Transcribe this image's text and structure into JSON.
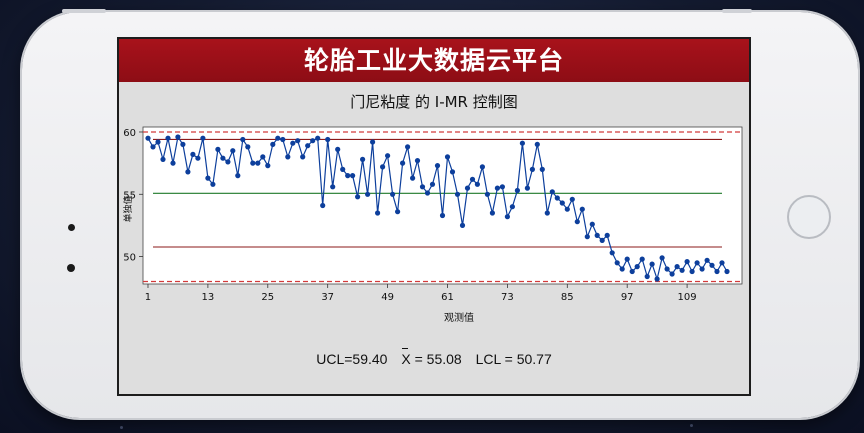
{
  "app": {
    "banner_title": "轮胎工业大数据云平台"
  },
  "device": {
    "model_icon": "smartphone-icon",
    "home_button_icon": "home-button-icon"
  },
  "stats": {
    "ucl": "UCL=59.40",
    "mean_symbol": "X",
    "mean": " = 55.08",
    "lcl": "LCL = 50.77"
  },
  "chart_data": {
    "type": "line",
    "title": "门尼粘度 的 I-MR 控制图",
    "xlabel": "观测值",
    "ylabel": "单独值",
    "xlim": [
      0,
      120
    ],
    "ylim": [
      47.8,
      60.4
    ],
    "x_ticks": [
      1,
      13,
      25,
      37,
      49,
      61,
      73,
      85,
      97,
      109
    ],
    "y_ticks": [
      50,
      55,
      60
    ],
    "colors": {
      "series": "#0d3f9c",
      "ucl": "#8b1a1a",
      "lcl": "#8b1a1a",
      "center": "#1f7a2a",
      "spec": "#d23a3a"
    },
    "reference_lines": [
      {
        "name": "UCL",
        "value": 59.4,
        "style": "solid"
      },
      {
        "name": "center",
        "value": 55.08,
        "style": "solid"
      },
      {
        "name": "LCL",
        "value": 50.77,
        "style": "solid"
      },
      {
        "name": "upper-spec",
        "value": 60.0,
        "style": "dashed"
      },
      {
        "name": "lower-spec",
        "value": 48.0,
        "style": "dashed"
      }
    ],
    "series": [
      {
        "values": [
          59.5,
          58.8,
          59.2,
          57.8,
          59.5,
          57.5,
          59.6,
          59.0,
          56.8,
          58.2,
          57.9,
          59.5,
          56.3,
          55.8,
          58.6,
          57.9,
          57.6,
          58.5,
          56.5,
          59.4,
          58.8,
          57.5,
          57.5,
          58.0,
          57.3,
          59.0,
          59.5,
          59.4,
          58.0,
          59.1,
          59.3,
          58.0,
          58.9,
          59.3,
          59.5,
          54.1,
          59.4,
          55.6,
          58.6,
          57.0,
          56.5,
          56.5,
          54.8,
          57.8,
          55.0,
          59.2,
          53.5,
          57.2,
          58.1,
          55.0,
          53.6,
          57.5,
          58.8,
          56.3,
          57.7,
          55.6,
          55.1,
          55.8,
          57.3,
          53.3,
          58.0,
          56.8,
          55.0,
          52.5,
          55.5,
          56.2,
          55.8,
          57.2,
          55.0,
          53.5,
          55.5,
          55.6,
          53.2,
          54.0,
          55.3,
          59.1,
          55.5,
          57.0,
          59.0,
          57.0,
          53.5,
          55.2,
          54.7,
          54.3,
          53.8,
          54.6,
          52.8,
          53.8,
          51.6,
          52.6,
          51.7,
          51.3,
          51.7,
          50.3,
          49.5,
          49.0,
          49.8,
          48.8,
          49.2,
          49.8,
          48.4,
          49.4,
          48.2,
          49.9,
          49.0,
          48.6,
          49.2,
          48.9,
          49.6,
          48.8,
          49.5,
          49.0,
          49.7,
          49.3,
          48.8,
          49.5,
          48.8
        ]
      }
    ]
  }
}
